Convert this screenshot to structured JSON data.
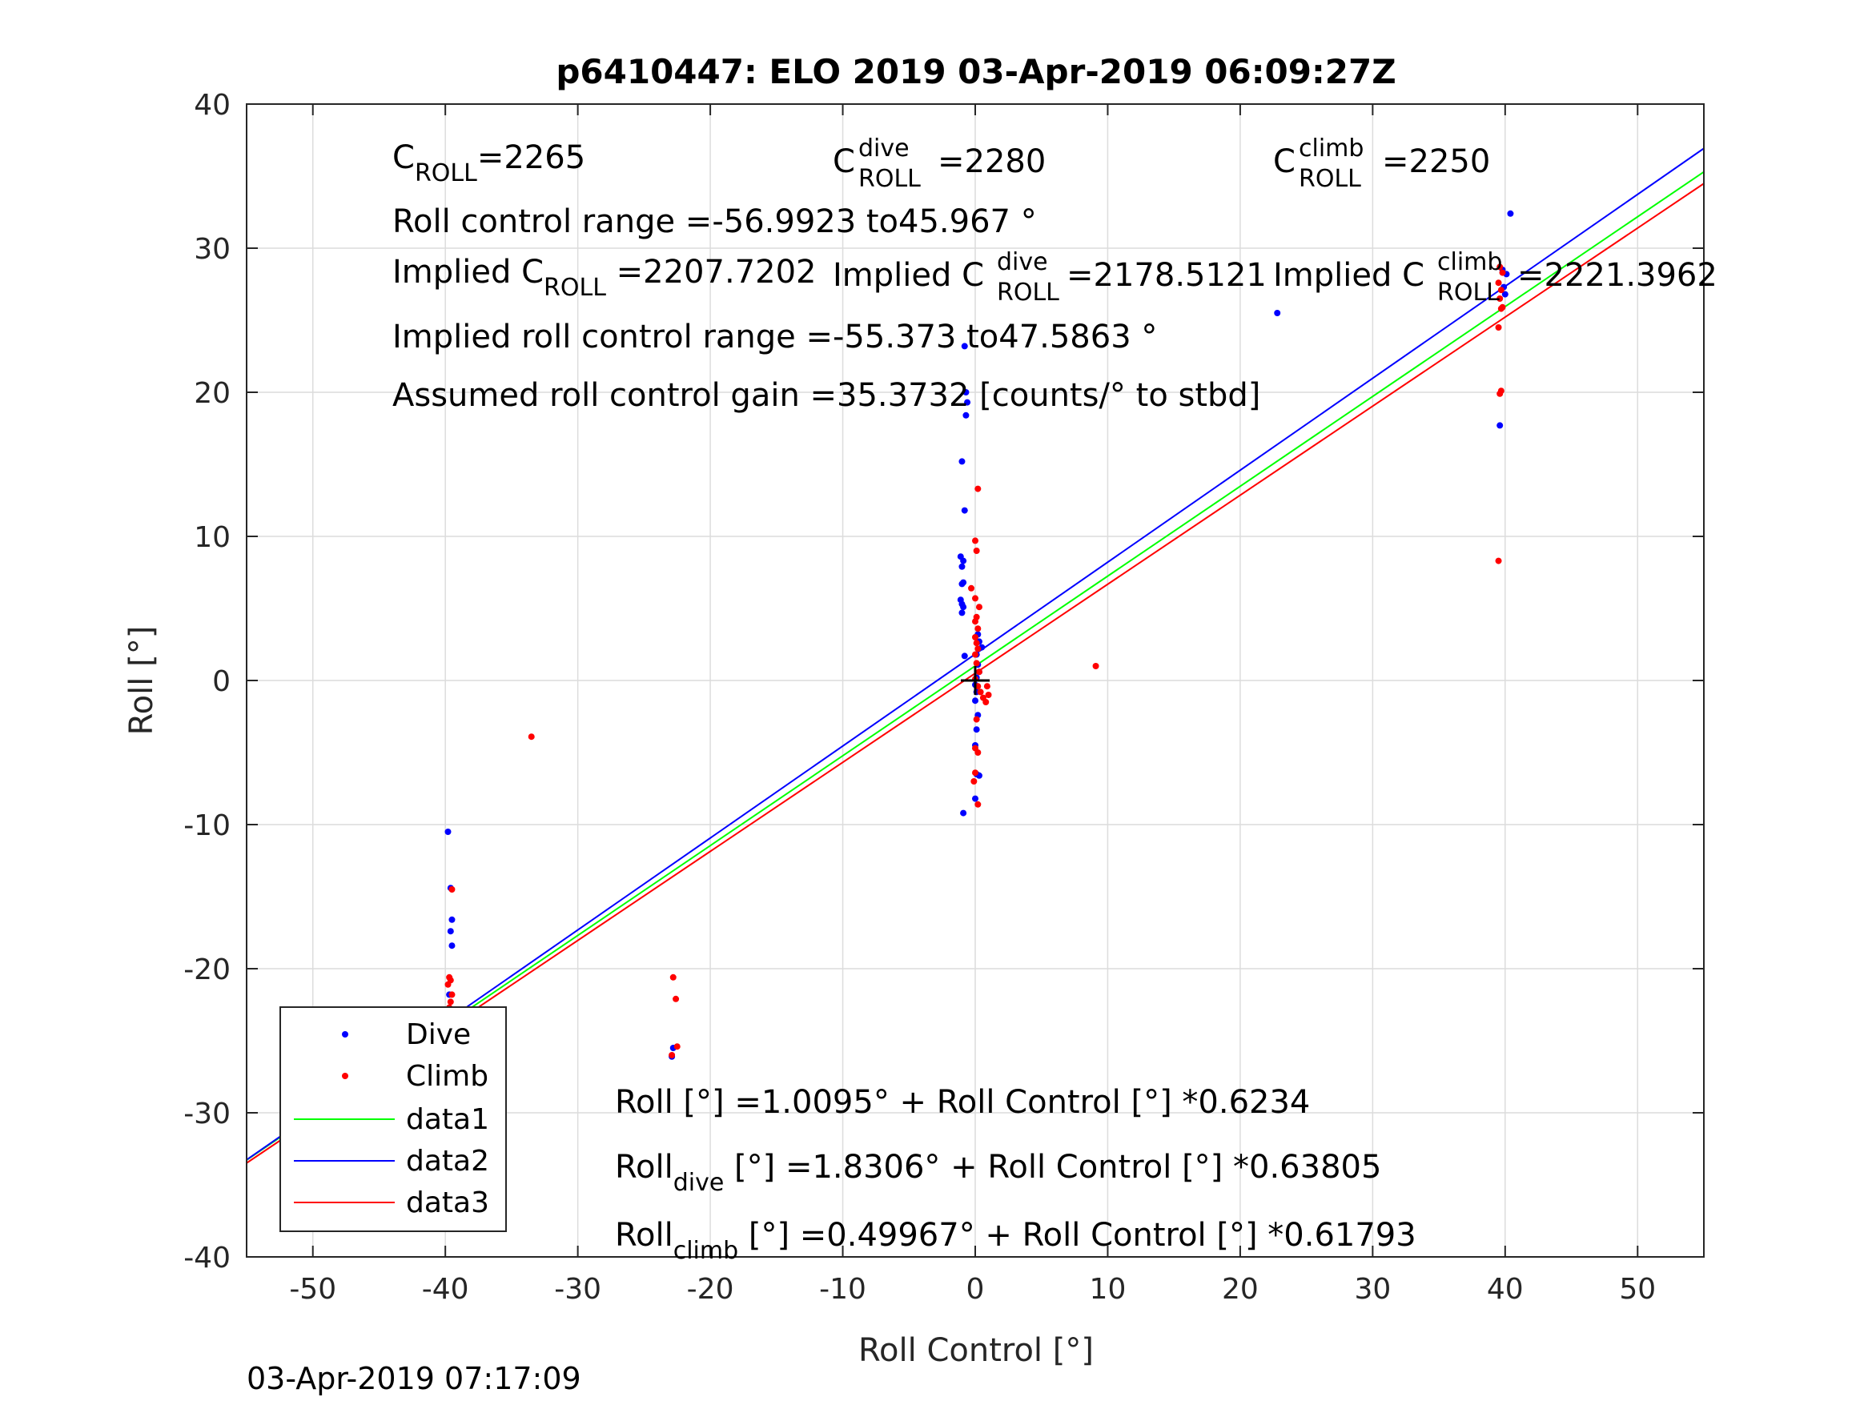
{
  "chart_data": {
    "type": "scatter",
    "title": "p6410447: ELO 2019 03-Apr-2019 06:09:27Z",
    "xlabel": "Roll Control [°]",
    "ylabel": "Roll [°]",
    "xlim": [
      -55,
      55
    ],
    "ylim": [
      -40,
      40
    ],
    "xticks": [
      -50,
      -40,
      -30,
      -20,
      -10,
      0,
      10,
      20,
      30,
      40,
      50
    ],
    "yticks": [
      -40,
      -30,
      -20,
      -10,
      0,
      10,
      20,
      30,
      40
    ],
    "xtick_labels": [
      "-50",
      "-40",
      "-30",
      "-20",
      "-10",
      "0",
      "10",
      "20",
      "30",
      "40",
      "50"
    ],
    "ytick_labels": [
      "-40",
      "-30",
      "-20",
      "-10",
      "0",
      "10",
      "20",
      "30",
      "40"
    ],
    "grid": true,
    "legend_position": "bottom-left",
    "series": [
      {
        "name": "Dive",
        "kind": "points",
        "color": "#0000ff",
        "points": [
          [
            -39.8,
            -10.5
          ],
          [
            -39.6,
            -14.4
          ],
          [
            -39.5,
            -16.6
          ],
          [
            -39.6,
            -17.4
          ],
          [
            -39.5,
            -18.4
          ],
          [
            -39.7,
            -21.8
          ],
          [
            -39.8,
            -23.4
          ],
          [
            -39.6,
            -24.2
          ],
          [
            -39.5,
            -25.2
          ],
          [
            -39.7,
            -25.7
          ],
          [
            -39.6,
            -26.3
          ],
          [
            -39.5,
            -26.8
          ],
          [
            -39.7,
            -27.2
          ],
          [
            -39.6,
            -28.5
          ],
          [
            -22.8,
            -25.5
          ],
          [
            -22.9,
            -26.1
          ],
          [
            -0.8,
            23.2
          ],
          [
            -0.7,
            20.0
          ],
          [
            -0.6,
            19.3
          ],
          [
            -0.7,
            18.4
          ],
          [
            -1.0,
            15.2
          ],
          [
            -0.8,
            11.8
          ],
          [
            -1.1,
            8.6
          ],
          [
            -0.9,
            8.3
          ],
          [
            -1.0,
            7.9
          ],
          [
            -0.9,
            6.8
          ],
          [
            -1.0,
            6.7
          ],
          [
            -1.1,
            5.6
          ],
          [
            -1.0,
            5.3
          ],
          [
            -0.9,
            5.1
          ],
          [
            -1.0,
            4.7
          ],
          [
            0.2,
            3.2
          ],
          [
            0.3,
            2.7
          ],
          [
            0.5,
            2.3
          ],
          [
            0.1,
            1.8
          ],
          [
            0.2,
            1.1
          ],
          [
            0.3,
            0.6
          ],
          [
            0.1,
            0.2
          ],
          [
            0.0,
            -0.3
          ],
          [
            0.1,
            -0.8
          ],
          [
            0.0,
            -1.4
          ],
          [
            0.2,
            -2.4
          ],
          [
            0.1,
            -3.4
          ],
          [
            0.0,
            -4.5
          ],
          [
            0.1,
            -6.5
          ],
          [
            0.3,
            -6.6
          ],
          [
            0.0,
            -8.2
          ],
          [
            -0.9,
            -9.2
          ],
          [
            -0.8,
            1.7
          ],
          [
            22.8,
            25.5
          ],
          [
            39.6,
            17.7
          ],
          [
            40.4,
            32.4
          ],
          [
            39.8,
            28.5
          ],
          [
            40.1,
            28.2
          ],
          [
            39.9,
            27.3
          ],
          [
            40.0,
            26.8
          ]
        ]
      },
      {
        "name": "Climb",
        "kind": "points",
        "color": "#ff0000",
        "points": [
          [
            -39.5,
            -14.5
          ],
          [
            -39.7,
            -20.6
          ],
          [
            -39.6,
            -20.8
          ],
          [
            -39.8,
            -21.1
          ],
          [
            -39.5,
            -21.8
          ],
          [
            -39.6,
            -22.3
          ],
          [
            -39.7,
            -22.7
          ],
          [
            -39.5,
            -23.0
          ],
          [
            -39.6,
            -23.4
          ],
          [
            -39.7,
            -23.8
          ],
          [
            -39.5,
            -24.3
          ],
          [
            -39.6,
            -24.9
          ],
          [
            -39.7,
            -25.6
          ],
          [
            -39.5,
            -26.2
          ],
          [
            -39.6,
            -26.9
          ],
          [
            -33.5,
            -3.9
          ],
          [
            -22.8,
            -20.6
          ],
          [
            -22.6,
            -22.1
          ],
          [
            -22.5,
            -25.4
          ],
          [
            -22.9,
            -26.0
          ],
          [
            0.2,
            13.3
          ],
          [
            0.0,
            9.7
          ],
          [
            0.1,
            9.0
          ],
          [
            -0.3,
            6.4
          ],
          [
            0.0,
            5.7
          ],
          [
            0.3,
            5.1
          ],
          [
            0.1,
            4.4
          ],
          [
            0.0,
            4.1
          ],
          [
            0.2,
            3.6
          ],
          [
            0.0,
            3.0
          ],
          [
            0.1,
            2.6
          ],
          [
            0.2,
            2.2
          ],
          [
            0.0,
            1.8
          ],
          [
            0.1,
            1.2
          ],
          [
            0.3,
            0.6
          ],
          [
            0.0,
            0.1
          ],
          [
            0.2,
            -0.4
          ],
          [
            0.4,
            -0.8
          ],
          [
            0.6,
            -1.2
          ],
          [
            0.8,
            -1.5
          ],
          [
            1.0,
            -1.0
          ],
          [
            0.9,
            -0.4
          ],
          [
            0.1,
            -2.7
          ],
          [
            0.0,
            -4.7
          ],
          [
            0.2,
            -5.0
          ],
          [
            0.0,
            -6.4
          ],
          [
            -0.1,
            -7.0
          ],
          [
            0.2,
            -8.6
          ],
          [
            9.1,
            1.0
          ],
          [
            39.6,
            28.7
          ],
          [
            39.8,
            28.3
          ],
          [
            39.5,
            27.6
          ],
          [
            39.7,
            27.1
          ],
          [
            39.6,
            26.5
          ],
          [
            39.7,
            25.8
          ],
          [
            39.5,
            24.5
          ],
          [
            39.7,
            20.1
          ],
          [
            39.6,
            19.9
          ],
          [
            39.5,
            8.3
          ],
          [
            39.8,
            25.9
          ]
        ]
      },
      {
        "name": "data1",
        "kind": "line",
        "color": "#00ff00",
        "intercept": 1.0095,
        "slope": 0.6234
      },
      {
        "name": "data2",
        "kind": "line",
        "color": "#0000ff",
        "intercept": 1.8306,
        "slope": 0.63805
      },
      {
        "name": "data3",
        "kind": "line",
        "color": "#ff0000",
        "intercept": 0.49967,
        "slope": 0.61793
      }
    ],
    "center_marker": {
      "x": 0,
      "y": 0,
      "symbol": "+"
    },
    "annotations": {
      "c_roll": {
        "base": "C",
        "sub": "ROLL",
        "value": "=2265"
      },
      "c_roll_dive": {
        "base": "C",
        "sup": "dive",
        "sub": "ROLL",
        "value": "=2280"
      },
      "c_roll_climb": {
        "base": "C",
        "sup": "climb",
        "sub": "ROLL",
        "value": "=2250"
      },
      "roll_control_range": "Roll control range =-56.9923 to45.967 °",
      "implied_c_roll": {
        "prefix": "Implied C",
        "sub": "ROLL",
        "value": " =2207.7202"
      },
      "implied_c_roll_dive": {
        "prefix": "Implied C",
        "sup": "dive",
        "sub": "ROLL",
        "value": " =2178.5121"
      },
      "implied_c_roll_climb": {
        "prefix": "Implied C",
        "sup": "climb",
        "sub": "ROLL",
        "value": "=2221.3962"
      },
      "implied_range": "Implied roll control range =-55.373 to47.5863 °",
      "gain": "Assumed roll control gain =35.3732 [counts/° to stbd]",
      "fit_all": {
        "base": "Roll",
        "rest": " [°] =1.0095° + Roll Control [°] *0.6234"
      },
      "fit_dive": {
        "base": "Roll",
        "sub": "dive",
        "rest": " [°] =1.8306° + Roll Control [°] *0.63805"
      },
      "fit_climb": {
        "base": "Roll",
        "sub": "climb",
        "rest": " [°] =0.49967° + Roll Control [°] *0.61793"
      }
    },
    "legend": [
      "Dive",
      "Climb",
      "data1",
      "data2",
      "data3"
    ]
  },
  "footer_timestamp": "03-Apr-2019 07:17:09"
}
